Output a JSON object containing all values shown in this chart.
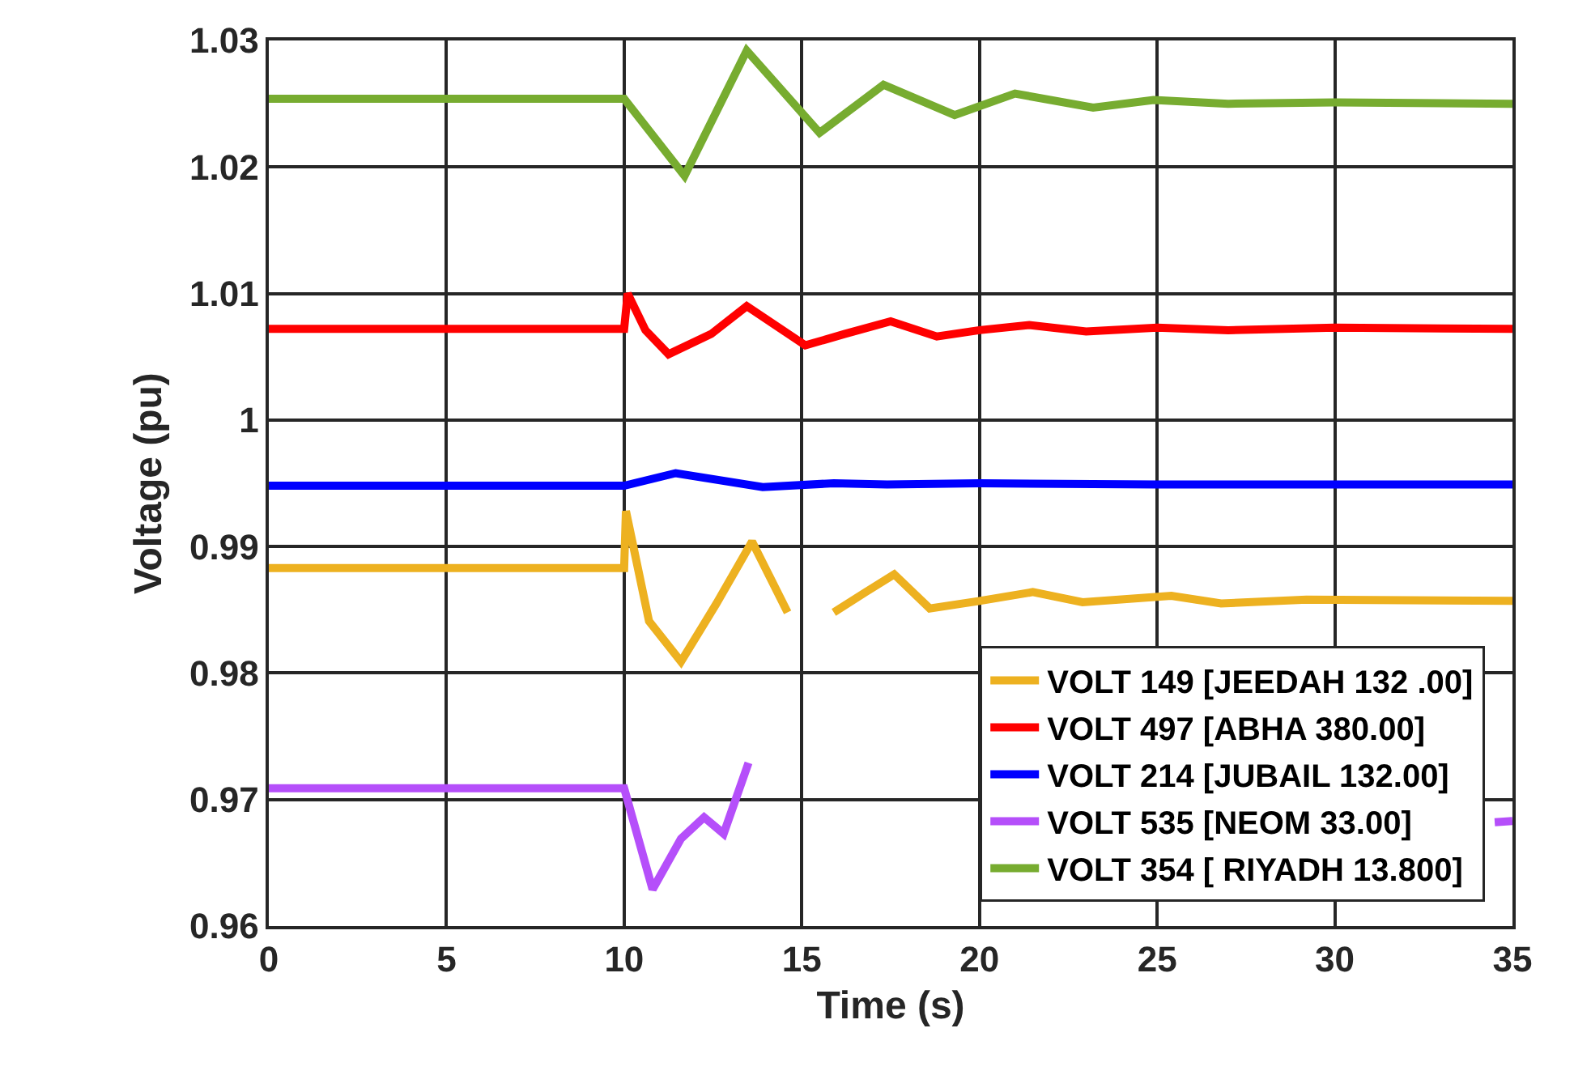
{
  "chart_data": {
    "type": "line",
    "xlabel": "Time (s)",
    "ylabel": "Voltage (pu)",
    "xlim": [
      0,
      35
    ],
    "xticks": [
      0,
      5,
      10,
      15,
      20,
      25,
      30,
      35
    ],
    "ylim": [
      0.96,
      1.03
    ],
    "yticks": [
      0.96,
      0.97,
      0.98,
      0.99,
      1,
      1.01,
      1.02,
      1.03
    ],
    "grid": true,
    "legend": "bottom right",
    "marker": "none",
    "line_style": "solid",
    "series": [
      {
        "name": "VOLT 149 [JEEDAH 132 .00]",
        "color": "#edb120",
        "x": [
          0,
          10,
          10.05,
          10.7,
          11.6,
          12.6,
          13.6,
          14.6,
          15.2,
          15.9,
          16.8,
          17.6,
          18.6,
          20.0,
          21.5,
          22.9,
          25.4,
          26.8,
          29.2,
          35
        ],
        "values": [
          0.9883,
          0.9883,
          0.9928,
          0.9841,
          0.9809,
          0.9855,
          0.9904,
          0.9848,
          null,
          0.9848,
          0.9864,
          0.9878,
          0.9851,
          0.9857,
          0.9864,
          0.9856,
          0.9861,
          0.9855,
          0.9858,
          0.9857
        ]
      },
      {
        "name": "VOLT 497 [ABHA 380.00]",
        "color": "#ff0000",
        "x": [
          0,
          10,
          10.1,
          10.6,
          11.25,
          12.45,
          13.45,
          15.1,
          16.2,
          17.5,
          18.8,
          20.0,
          21.4,
          23.0,
          25,
          27,
          30,
          35
        ],
        "values": [
          1.0072,
          1.0072,
          1.01,
          1.0071,
          1.0052,
          1.0068,
          1.009,
          1.0059,
          1.0068,
          1.0078,
          1.0066,
          1.0071,
          1.0075,
          1.007,
          1.0073,
          1.0071,
          1.0073,
          1.0072
        ]
      },
      {
        "name": "VOLT 214 [JUBAIL 132.00]",
        "color": "#0000ff",
        "x": [
          0,
          10,
          11.45,
          13.9,
          15.9,
          17.4,
          20,
          25,
          35
        ],
        "values": [
          0.9948,
          0.9948,
          0.9958,
          0.9947,
          0.995,
          0.9949,
          0.995,
          0.9949,
          0.9949
        ]
      },
      {
        "name": "VOLT 535 [NEOM 33.00]",
        "color": "#b54ffa",
        "x": [
          0,
          10,
          10.8,
          11.6,
          12.25,
          12.8,
          13.5,
          14,
          34.5,
          35
        ],
        "values": [
          0.9709,
          0.9709,
          0.9629,
          0.9669,
          0.9686,
          0.9673,
          0.9729,
          null,
          0.9682,
          0.9683
        ]
      },
      {
        "name": "VOLT 354 [ RIYADH 13.800]",
        "color": "#77ac30",
        "x": [
          0,
          10,
          11.7,
          13.45,
          15.5,
          17.3,
          19.3,
          21.0,
          23.2,
          24.9,
          27,
          30,
          35
        ],
        "values": [
          1.0254,
          1.0254,
          1.0193,
          1.0292,
          1.0227,
          1.0265,
          1.0241,
          1.0258,
          1.0247,
          1.0253,
          1.025,
          1.0251,
          1.025
        ]
      }
    ]
  }
}
